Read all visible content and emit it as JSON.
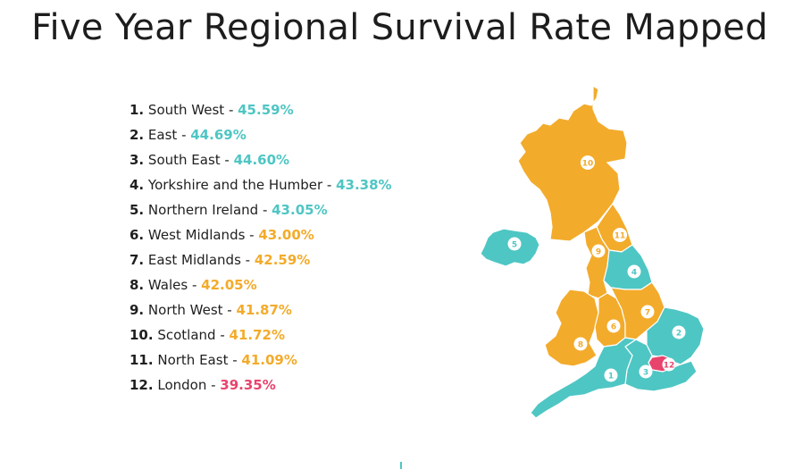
{
  "title": "Five Year Regional Survival Rate Mapped",
  "colors": {
    "teal": "#4ec6c4",
    "orange": "#f3ab2b",
    "pink": "#e8436d",
    "badge_bg": "#ffffff"
  },
  "rankings": [
    {
      "rank": "1.",
      "region": "South West",
      "sep": " - ",
      "value": "45.59%",
      "tier": "teal"
    },
    {
      "rank": "2.",
      "region": "East",
      "sep": " - ",
      "value": "44.69%",
      "tier": "teal"
    },
    {
      "rank": "3.",
      "region": "South East",
      "sep": " - ",
      "value": "44.60%",
      "tier": "teal"
    },
    {
      "rank": "4.",
      "region": "Yorkshire and the Humber",
      "sep": " - ",
      "value": "43.38%",
      "tier": "teal"
    },
    {
      "rank": "5.",
      "region": "Northern Ireland",
      "sep": " - ",
      "value": "43.05%",
      "tier": "teal"
    },
    {
      "rank": "6.",
      "region": "West Midlands",
      "sep": " - ",
      "value": "43.00%",
      "tier": "orange"
    },
    {
      "rank": "7.",
      "region": "East Midlands",
      "sep": " - ",
      "value": "42.59%",
      "tier": "orange"
    },
    {
      "rank": "8.",
      "region": "Wales",
      "sep": " - ",
      "value": "42.05%",
      "tier": "orange"
    },
    {
      "rank": "9.",
      "region": "North West",
      "sep": " - ",
      "value": "41.87%",
      "tier": "orange"
    },
    {
      "rank": "10.",
      "region": "Scotland",
      "sep": " - ",
      "value": "41.72%",
      "tier": "orange"
    },
    {
      "rank": "11.",
      "region": "North East",
      "sep": " - ",
      "value": "41.09%",
      "tier": "orange"
    },
    {
      "rank": "12.",
      "region": "London",
      "sep": " - ",
      "value": "39.35%",
      "tier": "pink"
    }
  ],
  "map_badges": [
    "1",
    "2",
    "3",
    "4",
    "5",
    "6",
    "7",
    "8",
    "9",
    "10",
    "11",
    "12"
  ]
}
